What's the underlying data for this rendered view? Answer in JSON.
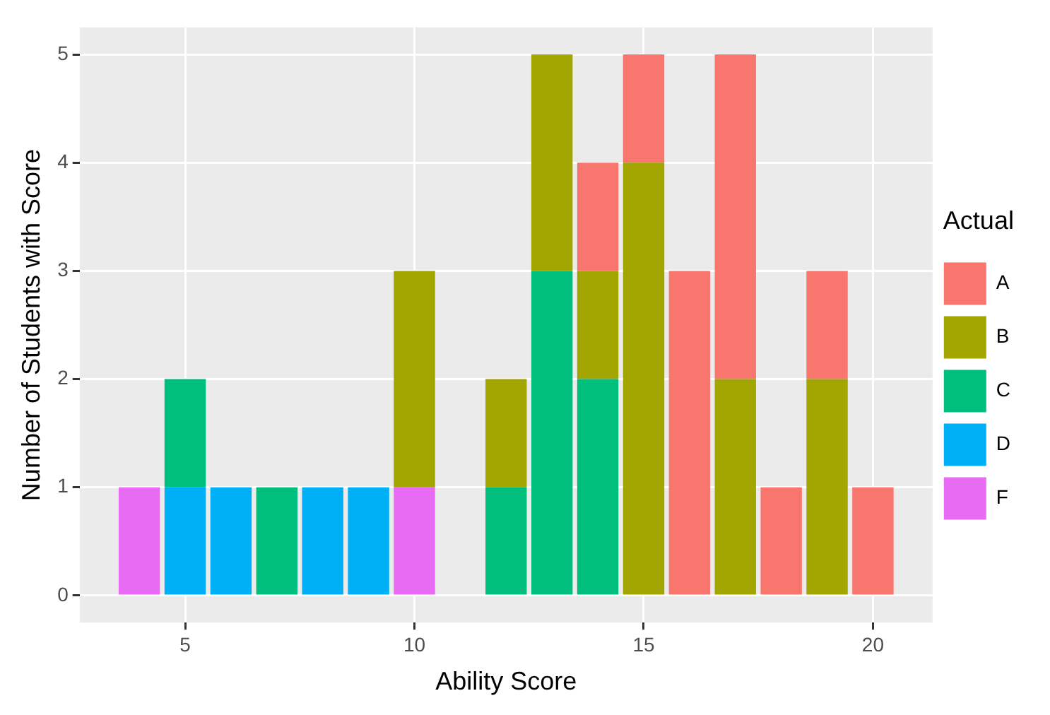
{
  "chart_data": {
    "type": "bar",
    "stacked": true,
    "xlabel": "Ability Score",
    "ylabel": "Number of Students with Score",
    "legend_title": "Actual",
    "legend": "right",
    "grid": true,
    "x": [
      4,
      5,
      6,
      7,
      8,
      9,
      10,
      11,
      12,
      13,
      14,
      15,
      16,
      17,
      18,
      19,
      20
    ],
    "xlim": [
      2.7,
      21.3
    ],
    "xticks": [
      5,
      10,
      15,
      20
    ],
    "ylim": [
      -0.25,
      5.25
    ],
    "yticks": [
      0,
      1,
      2,
      3,
      4,
      5
    ],
    "series": [
      {
        "name": "F",
        "color": "#e76bf3",
        "values": [
          1,
          null,
          null,
          null,
          null,
          null,
          1,
          null,
          null,
          null,
          null,
          null,
          null,
          null,
          null,
          null,
          null
        ]
      },
      {
        "name": "D",
        "color": "#00b0f6",
        "values": [
          null,
          1,
          1,
          null,
          1,
          1,
          null,
          null,
          null,
          null,
          null,
          null,
          null,
          null,
          null,
          null,
          null
        ]
      },
      {
        "name": "C",
        "color": "#00bf7d",
        "values": [
          null,
          1,
          null,
          1,
          null,
          null,
          null,
          null,
          1,
          3,
          2,
          null,
          null,
          null,
          null,
          null,
          null
        ]
      },
      {
        "name": "B",
        "color": "#a3a500",
        "values": [
          null,
          null,
          null,
          null,
          null,
          null,
          2,
          null,
          1,
          2,
          1,
          4,
          null,
          2,
          null,
          2,
          null
        ]
      },
      {
        "name": "A",
        "color": "#f8766d",
        "values": [
          null,
          null,
          null,
          null,
          null,
          null,
          null,
          null,
          null,
          null,
          1,
          1,
          3,
          3,
          1,
          1,
          1
        ]
      }
    ]
  }
}
